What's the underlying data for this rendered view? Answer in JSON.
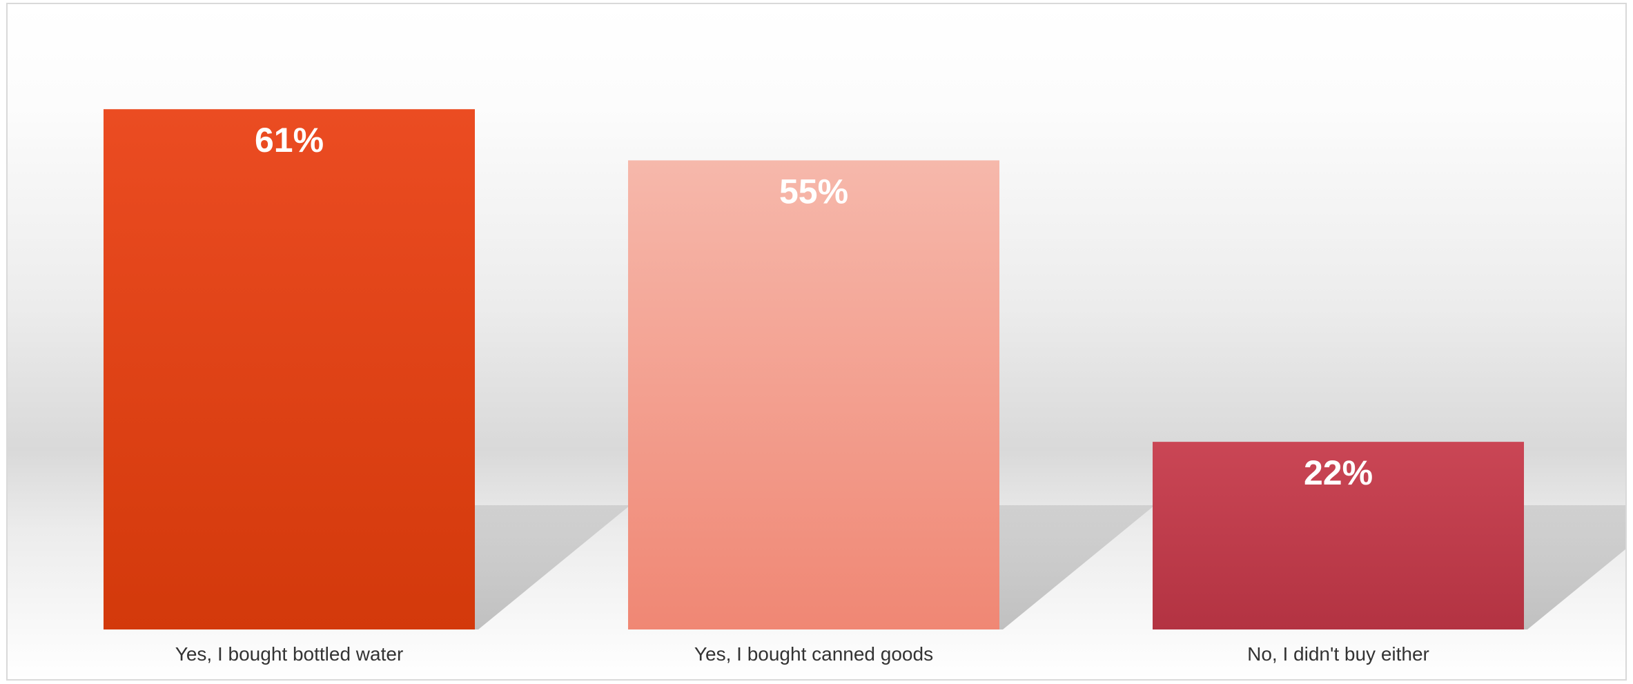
{
  "chart_data": {
    "type": "bar",
    "title": "",
    "xlabel": "",
    "ylabel": "",
    "ylim": [
      0,
      70
    ],
    "grid": false,
    "legend": "none",
    "categories": [
      "Yes, I bought bottled water",
      "Yes, I bought canned goods",
      "No, I didn't buy either"
    ],
    "values": [
      61,
      55,
      22
    ],
    "data_labels": [
      "61%",
      "55%",
      "22%"
    ],
    "colors": [
      "#e8441e",
      "#f4a89a",
      "#c43d4e"
    ],
    "gradients": [
      [
        "#eb4c22",
        "#d3390b"
      ],
      [
        "#f6b8ab",
        "#f08774"
      ],
      [
        "#ca4655",
        "#b33342"
      ]
    ]
  }
}
